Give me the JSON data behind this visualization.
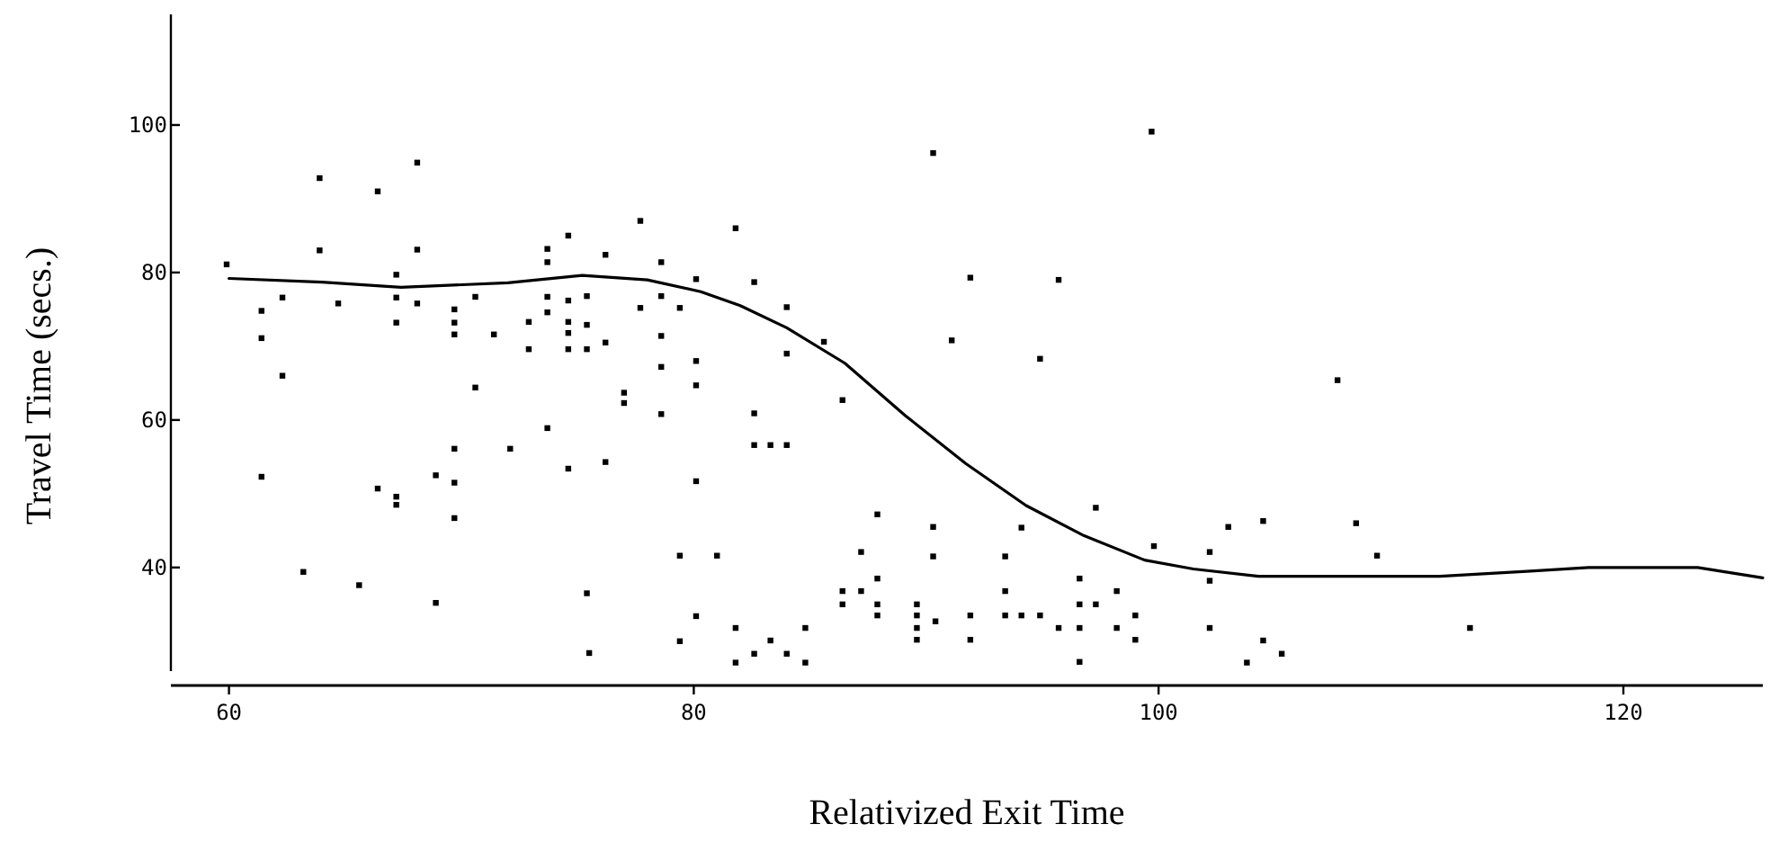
{
  "chart_data": {
    "type": "scatter",
    "xlabel": "Relativized Exit Time",
    "ylabel": "Travel Time (secs.)",
    "xlim": [
      57.5,
      126
    ],
    "ylim": [
      24,
      115
    ],
    "xticks": [
      60,
      80,
      100,
      120
    ],
    "yticks": [
      40,
      60,
      80,
      100
    ],
    "grid": false,
    "marker": "square",
    "line_style": "solid",
    "series": [
      {
        "color": "#000000",
        "x": [
          59.9,
          61.4,
          61.4,
          61.4,
          62.3,
          62.3,
          63.2,
          63.9,
          63.9,
          64.7,
          65.6,
          66.4,
          66.4,
          67.2,
          67.2,
          67.2,
          67.2,
          67.2,
          68.1,
          68.1,
          68.1,
          68.9,
          68.9,
          69.7,
          69.7,
          69.7,
          69.7,
          69.7,
          69.7,
          70.6,
          70.6,
          71.4,
          72.1,
          72.9,
          72.9,
          73.7,
          73.7,
          73.7,
          73.7,
          73.7,
          74.6,
          74.6,
          74.6,
          74.6,
          74.6,
          74.6,
          75.4,
          75.4,
          75.4,
          75.4,
          75.5,
          76.2,
          76.2,
          76.2,
          77.0,
          77.0,
          77.7,
          77.7,
          78.6,
          78.6,
          78.6,
          78.6,
          78.6,
          79.4,
          79.4,
          79.4,
          80.1,
          80.1,
          80.1,
          80.1,
          80.1,
          81.0,
          81.8,
          81.8,
          81.8,
          82.6,
          82.6,
          82.6,
          82.6,
          83.3,
          83.3,
          84.0,
          84.0,
          84.0,
          84.0,
          84.8,
          84.8,
          85.6,
          86.4,
          86.4,
          86.4,
          87.2,
          87.2,
          87.9,
          87.9,
          87.9,
          87.9,
          89.6,
          89.6,
          89.6,
          89.6,
          90.3,
          90.3,
          90.3,
          90.4,
          91.1,
          91.9,
          91.9,
          91.9,
          93.4,
          93.4,
          93.4,
          94.1,
          94.1,
          94.9,
          94.9,
          95.7,
          95.7,
          96.6,
          96.6,
          96.6,
          96.6,
          97.3,
          97.3,
          98.2,
          98.2,
          99.0,
          99.0,
          99.7,
          99.8,
          102.2,
          102.2,
          102.2,
          103.0,
          103.8,
          104.5,
          104.5,
          105.3,
          107.7,
          108.5,
          109.4,
          113.4
        ],
        "values": [
          81.1,
          74.8,
          71.1,
          52.3,
          76.6,
          66.0,
          39.4,
          92.8,
          83.0,
          75.8,
          37.6,
          91.0,
          50.7,
          79.7,
          76.6,
          73.2,
          49.6,
          48.5,
          94.9,
          83.1,
          75.8,
          52.5,
          35.2,
          75.0,
          73.2,
          71.6,
          56.1,
          51.5,
          46.7,
          76.7,
          64.4,
          71.6,
          56.1,
          73.3,
          69.6,
          83.2,
          81.4,
          76.7,
          74.6,
          58.9,
          85.0,
          76.2,
          73.3,
          71.8,
          69.6,
          53.4,
          76.8,
          72.9,
          69.6,
          36.5,
          28.4,
          82.4,
          70.5,
          54.3,
          63.7,
          62.3,
          87.0,
          75.2,
          81.4,
          76.8,
          71.4,
          67.2,
          60.8,
          75.2,
          41.6,
          30.0,
          79.1,
          68.0,
          64.7,
          51.7,
          33.4,
          41.6,
          86.0,
          31.8,
          27.1,
          78.7,
          60.9,
          56.6,
          28.3,
          56.6,
          30.1,
          75.3,
          69.0,
          56.6,
          28.3,
          31.8,
          27.1,
          70.6,
          62.7,
          36.8,
          35.0,
          42.1,
          36.8,
          47.2,
          38.5,
          35.0,
          33.5,
          35.0,
          33.5,
          31.8,
          30.2,
          96.2,
          45.5,
          41.5,
          32.7,
          70.8,
          79.3,
          33.5,
          30.2,
          41.5,
          36.8,
          33.5,
          45.4,
          33.5,
          68.3,
          33.5,
          79.0,
          31.8,
          38.5,
          35.0,
          31.8,
          27.2,
          48.1,
          35.0,
          36.8,
          31.8,
          33.5,
          30.2,
          99.1,
          42.9,
          42.1,
          38.2,
          31.8,
          45.5,
          27.1,
          46.3,
          30.1,
          28.3,
          65.4,
          46.0,
          41.6,
          31.8
        ]
      },
      {
        "type": "line",
        "marker": "none",
        "color": "#000000",
        "x": [
          60,
          64,
          67.4,
          72,
          75.2,
          78,
          80.3,
          82,
          84,
          86.5,
          89.1,
          91.7,
          94.3,
          96.8,
          99.4,
          101.5,
          104.3,
          108,
          112.1,
          116,
          118.5,
          123.2,
          126
        ],
        "values": [
          79.2,
          78.7,
          78.0,
          78.6,
          79.6,
          79.0,
          77.4,
          75.5,
          72.5,
          67.7,
          60.6,
          54.1,
          48.4,
          44.3,
          41.0,
          39.8,
          38.8,
          38.8,
          38.8,
          39.5,
          40.0,
          40.0,
          38.6
        ]
      }
    ]
  }
}
